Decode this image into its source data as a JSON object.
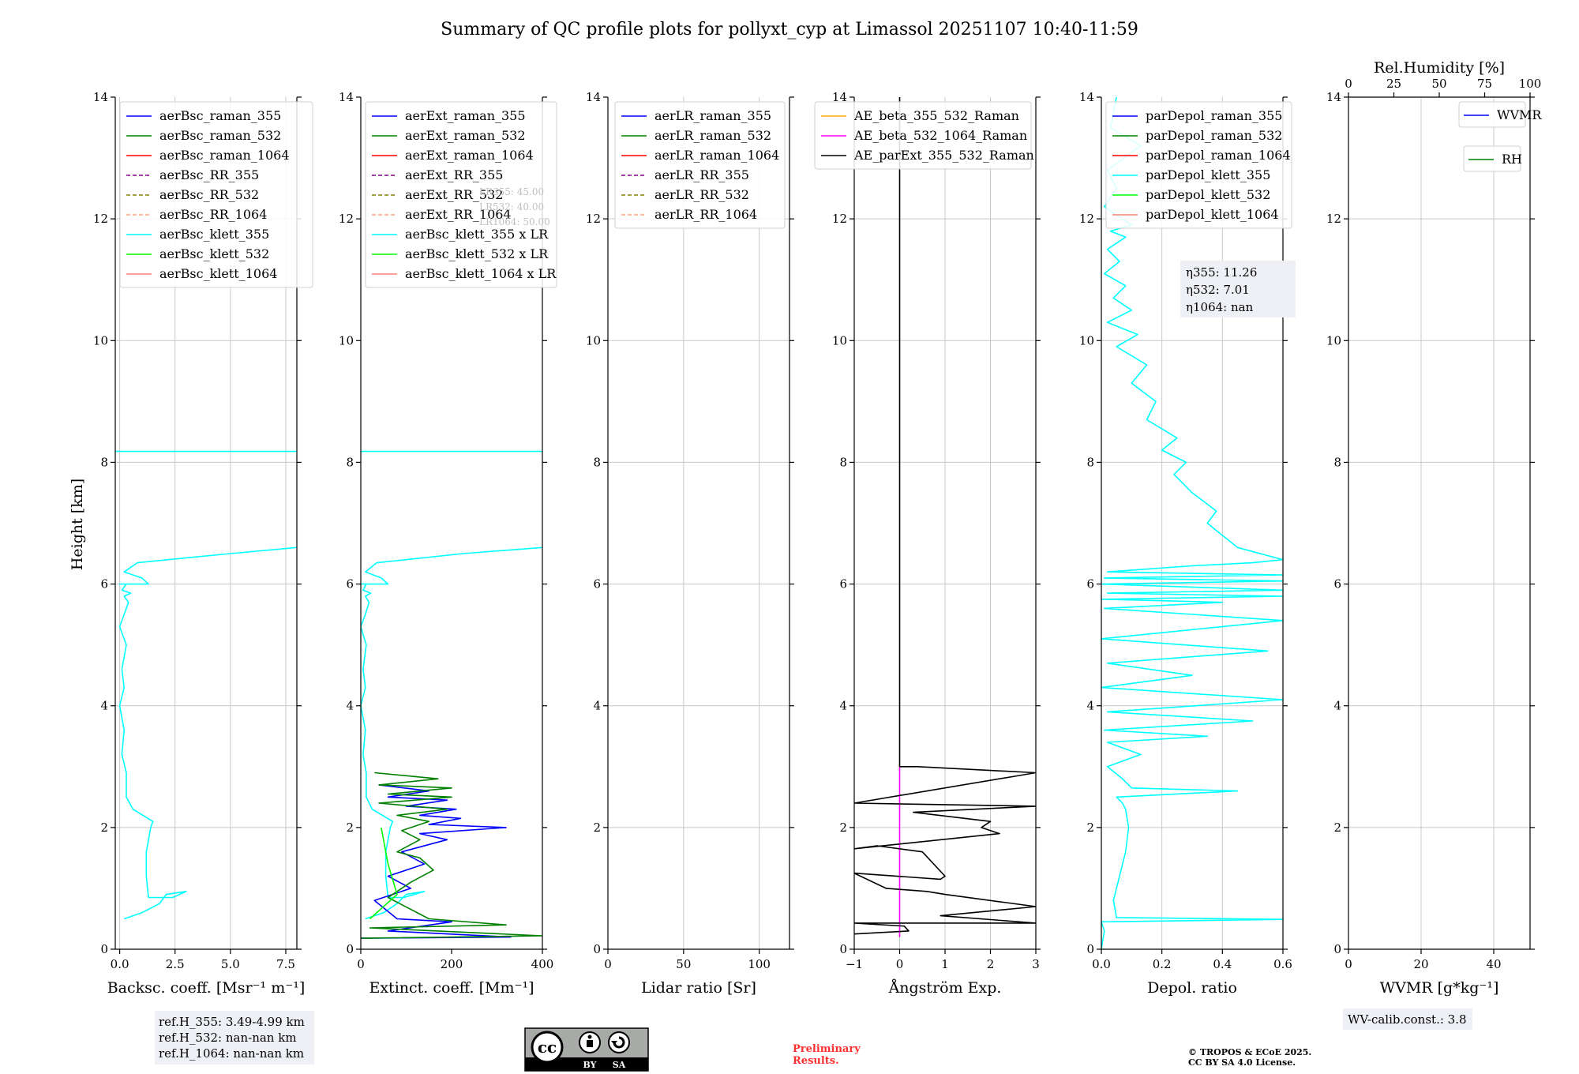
{
  "figure": {
    "title": "Summary of QC profile plots for pollyxt_cyp at Limassol 20251107 10:40-11:59",
    "ylabel": "Height [km]",
    "ref_heights": [
      "ref.H_355: 3.49-4.99 km",
      "ref.H_532: nan-nan km",
      "ref.H_1064: nan-nan km"
    ],
    "eta_lines": [
      "η355: 11.26",
      "η532: 7.01",
      "η1064: nan"
    ],
    "lr_hint_lines": [
      "LR355: 45.00",
      "LR532: 40.00",
      "LR1064: 50.00"
    ],
    "wv_calib": "WV-calib.const.: 3.8",
    "preliminary": [
      "Preliminary",
      "Results."
    ],
    "copyright": [
      "© TROPOS & ECoE 2025.",
      "CC BY SA 4.0 License."
    ],
    "license_badge": {
      "cc": "cc",
      "by": "BY",
      "sa": "SA"
    }
  },
  "chart_data": [
    {
      "type": "line",
      "id": "backscatter",
      "xlabel": "Backsc. coeff. [Msr⁻¹ m⁻¹]",
      "ylabel": "Height [km]",
      "xlim": [
        -0.2,
        8.0
      ],
      "ylim": [
        0,
        14
      ],
      "xticks": [
        0,
        2.5,
        5,
        7.5
      ],
      "xticklabels": [
        "0.0",
        "2.5",
        "5.0",
        "7.5"
      ],
      "yticks": [
        0,
        2,
        4,
        6,
        8,
        10,
        12,
        14
      ],
      "grid": true,
      "legend": "top-left",
      "legend_entries": [
        {
          "label": "aerBsc_raman_355",
          "color": "#0000ff",
          "dash": "solid"
        },
        {
          "label": "aerBsc_raman_532",
          "color": "#008000",
          "dash": "solid"
        },
        {
          "label": "aerBsc_raman_1064",
          "color": "#ff0000",
          "dash": "solid"
        },
        {
          "label": "aerBsc_RR_355",
          "color": "#800080",
          "dash": "dashed"
        },
        {
          "label": "aerBsc_RR_532",
          "color": "#808000",
          "dash": "dashed"
        },
        {
          "label": "aerBsc_RR_1064",
          "color": "#ffa07a",
          "dash": "dashed"
        },
        {
          "label": "aerBsc_klett_355",
          "color": "#00ffff",
          "dash": "solid"
        },
        {
          "label": "aerBsc_klett_532",
          "color": "#00ff00",
          "dash": "solid"
        },
        {
          "label": "aerBsc_klett_1064",
          "color": "#fa8072",
          "dash": "solid"
        }
      ],
      "series": [
        {
          "name": "aerBsc_klett_355",
          "color": "#00ffff",
          "x": [
            0.2,
            1.0,
            1.8,
            2.1,
            3.0,
            2.4,
            1.3,
            1.2,
            1.2,
            1.4,
            1.5,
            0.6,
            0.3,
            0.3,
            0.1,
            0.2,
            0.0,
            0.2,
            0.1,
            0.3,
            0.0,
            0.2,
            0.4,
            0.2,
            0.5,
            0.1,
            0.3,
            0.0,
            1.3,
            1.0,
            0.2,
            0.8,
            2.2,
            5.0,
            8.0
          ],
          "y": [
            0.5,
            0.6,
            0.75,
            0.9,
            0.95,
            0.85,
            0.85,
            1.2,
            1.6,
            2.0,
            2.1,
            2.3,
            2.5,
            2.9,
            3.2,
            3.6,
            4.0,
            4.3,
            4.6,
            5.0,
            5.3,
            5.5,
            5.7,
            5.8,
            5.85,
            5.9,
            6.0,
            6.0,
            6.0,
            6.1,
            6.2,
            6.35,
            6.4,
            6.5,
            6.6
          ]
        },
        {
          "name": "aerBsc_klett_355_high",
          "color": "#00ffff",
          "x": [
            -0.2,
            8.0
          ],
          "y": [
            8.18,
            8.18
          ]
        }
      ]
    },
    {
      "type": "line",
      "id": "extinction",
      "xlabel": "Extinct. coeff. [Mm⁻¹]",
      "ylabel": "Height [km]",
      "xlim": [
        0,
        400
      ],
      "ylim": [
        0,
        14
      ],
      "xticks": [
        0,
        200,
        400
      ],
      "xticklabels": [
        "0",
        "200",
        "400"
      ],
      "yticks": [
        0,
        2,
        4,
        6,
        8,
        10,
        12,
        14
      ],
      "grid": false,
      "legend": "top-left",
      "legend_entries": [
        {
          "label": "aerExt_raman_355",
          "color": "#0000ff",
          "dash": "solid"
        },
        {
          "label": "aerExt_raman_532",
          "color": "#008000",
          "dash": "solid"
        },
        {
          "label": "aerExt_raman_1064",
          "color": "#ff0000",
          "dash": "solid"
        },
        {
          "label": "aerExt_RR_355",
          "color": "#800080",
          "dash": "dashed"
        },
        {
          "label": "aerExt_RR_532",
          "color": "#808000",
          "dash": "dashed"
        },
        {
          "label": "aerExt_RR_1064",
          "color": "#ffa07a",
          "dash": "dashed"
        },
        {
          "label": "aerBsc_klett_355 x LR",
          "color": "#00ffff",
          "dash": "solid"
        },
        {
          "label": "aerBsc_klett_532 x LR",
          "color": "#00ff00",
          "dash": "solid"
        },
        {
          "label": "aerBsc_klett_1064 x LR",
          "color": "#fa8072",
          "dash": "solid"
        }
      ],
      "series": [
        {
          "name": "aerBsc_klett_355 x LR",
          "color": "#00ffff",
          "x": [
            10,
            50,
            80,
            100,
            140,
            95,
            60,
            55,
            55,
            65,
            70,
            25,
            12,
            12,
            5,
            10,
            0,
            10,
            5,
            12,
            0,
            10,
            18,
            10,
            22,
            5,
            12,
            0,
            60,
            45,
            10,
            35,
            100,
            225,
            400
          ],
          "y": [
            0.5,
            0.6,
            0.75,
            0.9,
            0.95,
            0.85,
            0.85,
            1.2,
            1.6,
            2.0,
            2.1,
            2.3,
            2.5,
            2.9,
            3.2,
            3.6,
            4.0,
            4.3,
            4.6,
            5.0,
            5.3,
            5.5,
            5.7,
            5.8,
            5.85,
            5.9,
            6.0,
            6.0,
            6.0,
            6.1,
            6.2,
            6.35,
            6.4,
            6.5,
            6.6
          ]
        },
        {
          "name": "aerBsc_klett_355 x LR high",
          "color": "#00ffff",
          "x": [
            0,
            400
          ],
          "y": [
            8.18,
            8.18
          ]
        },
        {
          "name": "aerExt_raman_355",
          "color": "#0000ff",
          "x": [
            0,
            330,
            60,
            200,
            80,
            30,
            110,
            60,
            140,
            90,
            190,
            130,
            320,
            150,
            220,
            130,
            210,
            100,
            190,
            60,
            150,
            40
          ],
          "y": [
            0.18,
            0.2,
            0.3,
            0.45,
            0.5,
            0.8,
            1.0,
            1.2,
            1.4,
            1.6,
            1.8,
            1.9,
            2.0,
            2.05,
            2.15,
            2.2,
            2.3,
            2.35,
            2.45,
            2.5,
            2.6,
            2.7
          ]
        },
        {
          "name": "aerExt_raman_532",
          "color": "#008000",
          "x": [
            0,
            400,
            20,
            320,
            150,
            60,
            110,
            160,
            130,
            80,
            130,
            90,
            150,
            80,
            190,
            40,
            200,
            60,
            200,
            40,
            170,
            30
          ],
          "y": [
            0.18,
            0.22,
            0.35,
            0.4,
            0.5,
            0.85,
            1.1,
            1.3,
            1.5,
            1.6,
            1.8,
            1.95,
            2.1,
            2.2,
            2.3,
            2.4,
            2.5,
            2.55,
            2.65,
            2.7,
            2.8,
            2.9
          ]
        },
        {
          "name": "aerBsc_klett_532 x LR",
          "color": "#00ff00",
          "x": [
            20,
            80,
            60,
            45
          ],
          "y": [
            0.5,
            0.9,
            1.4,
            2.0
          ]
        }
      ]
    },
    {
      "type": "line",
      "id": "lidar_ratio",
      "xlabel": "Lidar ratio [Sr]",
      "ylabel": "Height [km]",
      "xlim": [
        0,
        120
      ],
      "ylim": [
        0,
        14
      ],
      "xticks": [
        0,
        50,
        100
      ],
      "xticklabels": [
        "0",
        "50",
        "100"
      ],
      "yticks": [
        0,
        2,
        4,
        6,
        8,
        10,
        12,
        14
      ],
      "grid": true,
      "legend": "top-right",
      "legend_entries": [
        {
          "label": "aerLR_raman_355",
          "color": "#0000ff",
          "dash": "solid"
        },
        {
          "label": "aerLR_raman_532",
          "color": "#008000",
          "dash": "solid"
        },
        {
          "label": "aerLR_raman_1064",
          "color": "#ff0000",
          "dash": "solid"
        },
        {
          "label": "aerLR_RR_355",
          "color": "#800080",
          "dash": "dashed"
        },
        {
          "label": "aerLR_RR_532",
          "color": "#808000",
          "dash": "dashed"
        },
        {
          "label": "aerLR_RR_1064",
          "color": "#ffa07a",
          "dash": "dashed"
        }
      ],
      "series": []
    },
    {
      "type": "line",
      "id": "angstrom",
      "xlabel": "Ångström Exp.",
      "ylabel": "Height [km]",
      "xlim": [
        -1,
        3
      ],
      "ylim": [
        0,
        14
      ],
      "xticks": [
        -1,
        0,
        1,
        2,
        3
      ],
      "xticklabels": [
        "−1",
        "0",
        "1",
        "2",
        "3"
      ],
      "yticks": [
        0,
        2,
        4,
        6,
        8,
        10,
        12,
        14
      ],
      "grid": true,
      "legend": "top-right",
      "legend_entries": [
        {
          "label": "AE_beta_355_532_Raman",
          "color": "#ffa500",
          "dash": "solid"
        },
        {
          "label": "AE_beta_532_1064_Raman",
          "color": "#ff00ff",
          "dash": "solid"
        },
        {
          "label": "AE_parExt_355_532_Raman",
          "color": "#000000",
          "dash": "solid"
        }
      ],
      "series": [
        {
          "name": "AE_beta_532_1064_Raman",
          "color": "#ff00ff",
          "x": [
            0,
            0
          ],
          "y": [
            0.2,
            3.0
          ]
        },
        {
          "name": "AE_parExt_355_532_Raman",
          "color": "#000000",
          "x": [
            -1,
            0.2,
            0.1,
            -1,
            3,
            0.9,
            3,
            1.0,
            0.6,
            -0.3,
            -1,
            0.9,
            1.0,
            0.5,
            -0.5,
            -1,
            2.2,
            1.8,
            2.0,
            0.3,
            3,
            -1,
            3,
            0.4,
            0.0,
            0.0,
            0.0
          ],
          "y": [
            0.25,
            0.3,
            0.38,
            0.43,
            0.43,
            0.55,
            0.7,
            0.9,
            0.95,
            1.0,
            1.25,
            1.15,
            1.2,
            1.6,
            1.7,
            1.65,
            1.9,
            2.0,
            2.1,
            2.25,
            2.35,
            2.4,
            2.9,
            3.0,
            3.0,
            12.9,
            14.0
          ]
        }
      ]
    },
    {
      "type": "line",
      "id": "depol",
      "xlabel": "Depol. ratio",
      "ylabel": "Height [km]",
      "xlim": [
        0,
        0.6
      ],
      "ylim": [
        0,
        14
      ],
      "xticks": [
        0,
        0.2,
        0.4,
        0.6
      ],
      "xticklabels": [
        "0.0",
        "0.2",
        "0.4",
        "0.6"
      ],
      "yticks": [
        0,
        2,
        4,
        6,
        8,
        10,
        12,
        14
      ],
      "grid": true,
      "legend": "top-left",
      "legend_entries": [
        {
          "label": "parDepol_raman_355",
          "color": "#0000ff",
          "dash": "solid"
        },
        {
          "label": "parDepol_raman_532",
          "color": "#008000",
          "dash": "solid"
        },
        {
          "label": "parDepol_raman_1064",
          "color": "#ff0000",
          "dash": "solid"
        },
        {
          "label": "parDepol_klett_355",
          "color": "#00ffff",
          "dash": "solid"
        },
        {
          "label": "parDepol_klett_532",
          "color": "#00ff00",
          "dash": "solid"
        },
        {
          "label": "parDepol_klett_1064",
          "color": "#fa8072",
          "dash": "solid"
        }
      ],
      "series": [
        {
          "name": "parDepol_klett_355",
          "color": "#00ffff",
          "x": [
            0.0,
            0.01,
            0.0,
            0.6,
            0.05,
            0.04,
            0.06,
            0.08,
            0.09,
            0.08,
            0.07,
            0.05,
            0.45,
            0.1,
            0.07,
            0.02,
            0.13,
            0.02,
            0.35,
            0.01,
            0.5,
            0.02,
            0.6,
            0.0,
            0.3,
            0.02,
            0.55,
            0.0,
            0.6,
            0.01,
            0.4,
            0.0,
            0.6,
            0.02,
            0.6,
            0.0,
            0.6,
            0.01,
            0.6,
            0.02,
            0.3,
            0.5,
            0.6,
            0.45,
            0.4,
            0.35,
            0.38,
            0.3,
            0.24,
            0.28,
            0.2,
            0.25,
            0.15,
            0.18,
            0.1,
            0.15,
            0.05,
            0.12,
            0.02,
            0.1,
            0.04,
            0.08,
            0.01,
            0.06,
            0.02,
            0.08,
            0.03,
            0.1,
            0.01,
            0.05,
            0.02,
            0.13,
            0.03,
            0.05
          ],
          "y": [
            0.0,
            0.3,
            0.45,
            0.49,
            0.52,
            0.8,
            1.2,
            1.6,
            2.0,
            2.3,
            2.4,
            2.5,
            2.6,
            2.65,
            2.8,
            3.0,
            3.2,
            3.4,
            3.5,
            3.6,
            3.75,
            3.9,
            4.1,
            4.3,
            4.5,
            4.7,
            4.9,
            5.1,
            5.4,
            5.6,
            5.7,
            5.75,
            5.8,
            5.85,
            5.9,
            6.0,
            6.05,
            6.1,
            6.15,
            6.2,
            6.3,
            6.35,
            6.4,
            6.6,
            6.8,
            7.0,
            7.2,
            7.5,
            7.8,
            8.0,
            8.2,
            8.4,
            8.7,
            9.0,
            9.3,
            9.6,
            9.9,
            10.1,
            10.3,
            10.5,
            10.7,
            10.9,
            11.1,
            11.3,
            11.5,
            11.7,
            11.8,
            11.9,
            12.2,
            12.5,
            12.8,
            13.2,
            13.5,
            14.0
          ]
        }
      ]
    },
    {
      "type": "line",
      "id": "wvmr",
      "xlabel": "WVMR [g*kg⁻¹]",
      "ylabel": "Height [km]",
      "x2label": "Rel.Humidity [%]",
      "xlim": [
        0,
        50
      ],
      "x2lim": [
        0,
        100
      ],
      "ylim": [
        0,
        14
      ],
      "xticks": [
        0,
        20,
        40
      ],
      "xticklabels": [
        "0",
        "20",
        "40"
      ],
      "x2ticks": [
        0,
        25,
        50,
        75,
        100
      ],
      "x2ticklabels": [
        "0",
        "25",
        "50",
        "75",
        "100"
      ],
      "yticks": [
        0,
        2,
        4,
        6,
        8,
        10,
        12,
        14
      ],
      "grid": true,
      "legend": "top-right",
      "legend_entries": [
        {
          "label": "WVMR",
          "color": "#0000ff",
          "dash": "solid"
        },
        {
          "label": "RH",
          "color": "#008000",
          "dash": "solid"
        }
      ],
      "series": []
    }
  ]
}
